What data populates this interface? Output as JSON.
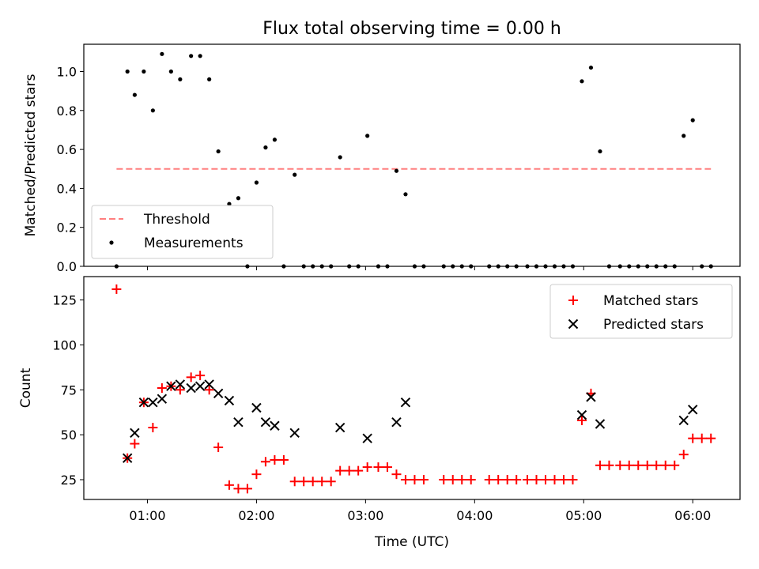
{
  "chart_data": [
    {
      "type": "scatter",
      "title": "Flux total observing time = 0.00 h",
      "xlabel": "",
      "ylabel": "Matched/Predicted stars",
      "xlim": [
        "00:25",
        "06:26"
      ],
      "ylim": [
        0,
        1.14
      ],
      "yticks": [
        0.0,
        0.2,
        0.4,
        0.6,
        0.8,
        1.0
      ],
      "ytick_labels": [
        "0.0",
        "0.2",
        "0.4",
        "0.6",
        "0.8",
        "1.0"
      ],
      "grid": false,
      "legend": {
        "placement": "lower-left",
        "entries": [
          "Threshold",
          "Measurements"
        ]
      },
      "threshold": {
        "name": "Threshold",
        "y": 0.5,
        "x_start": "00:43",
        "x_end": "06:10",
        "color": "#ff7f7f",
        "style": "dashed"
      },
      "series": [
        {
          "name": "Measurements",
          "marker": "dot",
          "color": "#000000",
          "points": [
            {
              "x": "00:43",
              "y": 0.0
            },
            {
              "x": "00:49",
              "y": 1.0
            },
            {
              "x": "00:53",
              "y": 0.88
            },
            {
              "x": "00:58",
              "y": 1.0
            },
            {
              "x": "01:03",
              "y": 0.8
            },
            {
              "x": "01:08",
              "y": 1.09
            },
            {
              "x": "01:13",
              "y": 1.0
            },
            {
              "x": "01:18",
              "y": 0.96
            },
            {
              "x": "01:24",
              "y": 1.08
            },
            {
              "x": "01:29",
              "y": 1.08
            },
            {
              "x": "01:34",
              "y": 0.96
            },
            {
              "x": "01:39",
              "y": 0.59
            },
            {
              "x": "01:45",
              "y": 0.32
            },
            {
              "x": "01:50",
              "y": 0.35
            },
            {
              "x": "01:55",
              "y": 0.0
            },
            {
              "x": "02:00",
              "y": 0.43
            },
            {
              "x": "02:05",
              "y": 0.61
            },
            {
              "x": "02:10",
              "y": 0.65
            },
            {
              "x": "02:15",
              "y": 0.0
            },
            {
              "x": "02:21",
              "y": 0.47
            },
            {
              "x": "02:26",
              "y": 0.0
            },
            {
              "x": "02:31",
              "y": 0.0
            },
            {
              "x": "02:36",
              "y": 0.0
            },
            {
              "x": "02:41",
              "y": 0.0
            },
            {
              "x": "02:46",
              "y": 0.56
            },
            {
              "x": "02:51",
              "y": 0.0
            },
            {
              "x": "02:56",
              "y": 0.0
            },
            {
              "x": "03:01",
              "y": 0.67
            },
            {
              "x": "03:07",
              "y": 0.0
            },
            {
              "x": "03:12",
              "y": 0.0
            },
            {
              "x": "03:17",
              "y": 0.49
            },
            {
              "x": "03:22",
              "y": 0.37
            },
            {
              "x": "03:27",
              "y": 0.0
            },
            {
              "x": "03:32",
              "y": 0.0
            },
            {
              "x": "03:43",
              "y": 0.0
            },
            {
              "x": "03:48",
              "y": 0.0
            },
            {
              "x": "03:53",
              "y": 0.0
            },
            {
              "x": "03:58",
              "y": 0.0
            },
            {
              "x": "04:08",
              "y": 0.0
            },
            {
              "x": "04:13",
              "y": 0.0
            },
            {
              "x": "04:18",
              "y": 0.0
            },
            {
              "x": "04:23",
              "y": 0.0
            },
            {
              "x": "04:29",
              "y": 0.0
            },
            {
              "x": "04:34",
              "y": 0.0
            },
            {
              "x": "04:39",
              "y": 0.0
            },
            {
              "x": "04:44",
              "y": 0.0
            },
            {
              "x": "04:49",
              "y": 0.0
            },
            {
              "x": "04:54",
              "y": 0.0
            },
            {
              "x": "04:59",
              "y": 0.95
            },
            {
              "x": "05:04",
              "y": 1.02
            },
            {
              "x": "05:09",
              "y": 0.59
            },
            {
              "x": "05:14",
              "y": 0.0
            },
            {
              "x": "05:20",
              "y": 0.0
            },
            {
              "x": "05:25",
              "y": 0.0
            },
            {
              "x": "05:30",
              "y": 0.0
            },
            {
              "x": "05:35",
              "y": 0.0
            },
            {
              "x": "05:40",
              "y": 0.0
            },
            {
              "x": "05:45",
              "y": 0.0
            },
            {
              "x": "05:50",
              "y": 0.0
            },
            {
              "x": "05:55",
              "y": 0.67
            },
            {
              "x": "06:00",
              "y": 0.75
            },
            {
              "x": "06:05",
              "y": 0.0
            },
            {
              "x": "06:10",
              "y": 0.0
            }
          ]
        }
      ]
    },
    {
      "type": "scatter",
      "title": "",
      "xlabel": "Time (UTC)",
      "ylabel": "Count",
      "xlim": [
        "00:25",
        "06:26"
      ],
      "ylim": [
        14,
        138
      ],
      "xticks": [
        "01:00",
        "02:00",
        "03:00",
        "04:00",
        "05:00",
        "06:00"
      ],
      "yticks": [
        25,
        50,
        75,
        100,
        125
      ],
      "ytick_labels": [
        "25",
        "50",
        "75",
        "100",
        "125"
      ],
      "grid": false,
      "legend": {
        "placement": "upper-right",
        "entries": [
          "Matched stars",
          "Predicted stars"
        ]
      },
      "series": [
        {
          "name": "Matched stars",
          "marker": "plus",
          "color": "#ff0000",
          "points": [
            {
              "x": "00:43",
              "y": 131
            },
            {
              "x": "00:49",
              "y": 37
            },
            {
              "x": "00:53",
              "y": 45
            },
            {
              "x": "00:58",
              "y": 68
            },
            {
              "x": "01:03",
              "y": 54
            },
            {
              "x": "01:08",
              "y": 76
            },
            {
              "x": "01:13",
              "y": 77
            },
            {
              "x": "01:18",
              "y": 75
            },
            {
              "x": "01:24",
              "y": 82
            },
            {
              "x": "01:29",
              "y": 83
            },
            {
              "x": "01:34",
              "y": 75
            },
            {
              "x": "01:39",
              "y": 43
            },
            {
              "x": "01:45",
              "y": 22
            },
            {
              "x": "01:50",
              "y": 20
            },
            {
              "x": "01:55",
              "y": 20
            },
            {
              "x": "02:00",
              "y": 28
            },
            {
              "x": "02:05",
              "y": 35
            },
            {
              "x": "02:10",
              "y": 36
            },
            {
              "x": "02:15",
              "y": 36
            },
            {
              "x": "02:21",
              "y": 24
            },
            {
              "x": "02:26",
              "y": 24
            },
            {
              "x": "02:31",
              "y": 24
            },
            {
              "x": "02:36",
              "y": 24
            },
            {
              "x": "02:41",
              "y": 24
            },
            {
              "x": "02:46",
              "y": 30
            },
            {
              "x": "02:51",
              "y": 30
            },
            {
              "x": "02:56",
              "y": 30
            },
            {
              "x": "03:01",
              "y": 32
            },
            {
              "x": "03:07",
              "y": 32
            },
            {
              "x": "03:12",
              "y": 32
            },
            {
              "x": "03:17",
              "y": 28
            },
            {
              "x": "03:22",
              "y": 25
            },
            {
              "x": "03:27",
              "y": 25
            },
            {
              "x": "03:32",
              "y": 25
            },
            {
              "x": "03:43",
              "y": 25
            },
            {
              "x": "03:48",
              "y": 25
            },
            {
              "x": "03:53",
              "y": 25
            },
            {
              "x": "03:58",
              "y": 25
            },
            {
              "x": "04:08",
              "y": 25
            },
            {
              "x": "04:13",
              "y": 25
            },
            {
              "x": "04:18",
              "y": 25
            },
            {
              "x": "04:23",
              "y": 25
            },
            {
              "x": "04:29",
              "y": 25
            },
            {
              "x": "04:34",
              "y": 25
            },
            {
              "x": "04:39",
              "y": 25
            },
            {
              "x": "04:44",
              "y": 25
            },
            {
              "x": "04:49",
              "y": 25
            },
            {
              "x": "04:54",
              "y": 25
            },
            {
              "x": "04:59",
              "y": 58
            },
            {
              "x": "05:04",
              "y": 73
            },
            {
              "x": "05:09",
              "y": 33
            },
            {
              "x": "05:14",
              "y": 33
            },
            {
              "x": "05:20",
              "y": 33
            },
            {
              "x": "05:25",
              "y": 33
            },
            {
              "x": "05:30",
              "y": 33
            },
            {
              "x": "05:35",
              "y": 33
            },
            {
              "x": "05:40",
              "y": 33
            },
            {
              "x": "05:45",
              "y": 33
            },
            {
              "x": "05:50",
              "y": 33
            },
            {
              "x": "05:55",
              "y": 39
            },
            {
              "x": "06:00",
              "y": 48
            },
            {
              "x": "06:05",
              "y": 48
            },
            {
              "x": "06:10",
              "y": 48
            }
          ]
        },
        {
          "name": "Predicted stars",
          "marker": "x",
          "color": "#000000",
          "points": [
            {
              "x": "00:49",
              "y": 37
            },
            {
              "x": "00:53",
              "y": 51
            },
            {
              "x": "00:58",
              "y": 68
            },
            {
              "x": "01:03",
              "y": 68
            },
            {
              "x": "01:08",
              "y": 70
            },
            {
              "x": "01:13",
              "y": 77
            },
            {
              "x": "01:18",
              "y": 78
            },
            {
              "x": "01:24",
              "y": 76
            },
            {
              "x": "01:29",
              "y": 77
            },
            {
              "x": "01:34",
              "y": 78
            },
            {
              "x": "01:39",
              "y": 73
            },
            {
              "x": "01:45",
              "y": 69
            },
            {
              "x": "01:50",
              "y": 57
            },
            {
              "x": "02:00",
              "y": 65
            },
            {
              "x": "02:05",
              "y": 57
            },
            {
              "x": "02:10",
              "y": 55
            },
            {
              "x": "02:21",
              "y": 51
            },
            {
              "x": "02:46",
              "y": 54
            },
            {
              "x": "03:01",
              "y": 48
            },
            {
              "x": "03:17",
              "y": 57
            },
            {
              "x": "03:22",
              "y": 68
            },
            {
              "x": "04:59",
              "y": 61
            },
            {
              "x": "05:04",
              "y": 71
            },
            {
              "x": "05:09",
              "y": 56
            },
            {
              "x": "05:55",
              "y": 58
            },
            {
              "x": "06:00",
              "y": 64
            }
          ]
        }
      ]
    }
  ]
}
